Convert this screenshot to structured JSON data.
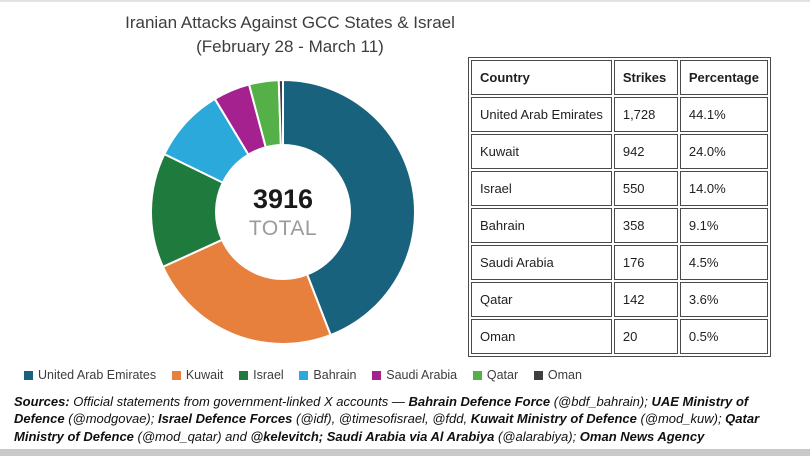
{
  "title": {
    "line1": "Iranian Attacks Against GCC States & Israel",
    "line2": "(February 28 - March 11)"
  },
  "chart_data": {
    "type": "pie",
    "title": "Iranian Attacks Against GCC States & Israel (February 28 - March 11)",
    "total": 3916,
    "total_label": "3916",
    "total_sublabel": "TOTAL",
    "categories": [
      "United Arab Emirates",
      "Kuwait",
      "Israel",
      "Bahrain",
      "Saudi Arabia",
      "Qatar",
      "Oman"
    ],
    "values": [
      1728,
      942,
      550,
      358,
      176,
      142,
      20
    ],
    "percentages": [
      44.1,
      24.0,
      14.0,
      9.1,
      4.5,
      3.6,
      0.5
    ],
    "colors": [
      "#19627E",
      "#E8803D",
      "#1F7A3D",
      "#2BA9DB",
      "#A4218F",
      "#55B048",
      "#3F3F3F"
    ],
    "legend_position": "bottom",
    "donut": true
  },
  "table": {
    "headers": [
      "Country",
      "Strikes",
      "Percentage"
    ],
    "rows": [
      {
        "country": "United Arab Emirates",
        "strikes": "1,728",
        "percentage": "44.1%"
      },
      {
        "country": "Kuwait",
        "strikes": "942",
        "percentage": "24.0%"
      },
      {
        "country": "Israel",
        "strikes": "550",
        "percentage": "14.0%"
      },
      {
        "country": "Bahrain",
        "strikes": "358",
        "percentage": "9.1%"
      },
      {
        "country": "Saudi Arabia",
        "strikes": "176",
        "percentage": "4.5%"
      },
      {
        "country": "Qatar",
        "strikes": "142",
        "percentage": "3.6%"
      },
      {
        "country": "Oman",
        "strikes": "20",
        "percentage": "0.5%"
      }
    ]
  },
  "sources": {
    "segments": [
      {
        "text": "Sources:",
        "bold": true
      },
      {
        "text": " Official statements from government-linked X accounts — ",
        "bold": false
      },
      {
        "text": "Bahrain Defence Force",
        "bold": true
      },
      {
        "text": " (@bdf_bahrain); ",
        "bold": false
      },
      {
        "text": "UAE Ministry of Defence",
        "bold": true
      },
      {
        "text": " (@modgovae); ",
        "bold": false
      },
      {
        "text": "Israel Defence Forces",
        "bold": true
      },
      {
        "text": " (@idf), @timesofisrael, @fdd, ",
        "bold": false
      },
      {
        "text": "Kuwait Ministry of Defence",
        "bold": true
      },
      {
        "text": " (@mod_kuw); ",
        "bold": false
      },
      {
        "text": "Qatar Ministry of Defence",
        "bold": true
      },
      {
        "text": " (@mod_qatar) and ",
        "bold": false
      },
      {
        "text": "@kelevitch; ",
        "bold": true
      },
      {
        "text": "Saudi Arabia via Al Arabiya",
        "bold": true
      },
      {
        "text": " (@alarabiya); ",
        "bold": false
      },
      {
        "text": "Oman News Agency",
        "bold": true
      }
    ]
  }
}
